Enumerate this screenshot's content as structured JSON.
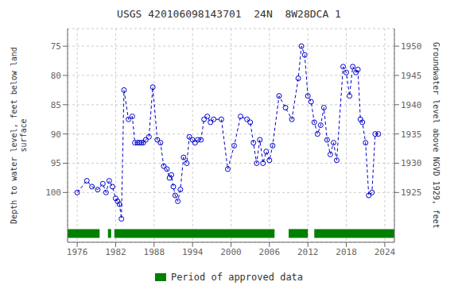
{
  "chart_data": {
    "type": "line",
    "title": "USGS 420106098143701  24N  8W28DCA 1",
    "ylabel": "Depth to water level, feet below land\nsurface",
    "y2label": "Groundwater level above NGVD 1929, feet",
    "x": [
      1976.0,
      1977.5,
      1978.3,
      1979.2,
      1980.0,
      1980.5,
      1981.0,
      1981.5,
      1982.0,
      1982.3,
      1982.6,
      1982.9,
      1983.3,
      1984.0,
      1984.6,
      1985.0,
      1985.4,
      1985.7,
      1986.0,
      1986.3,
      1986.7,
      1987.2,
      1987.8,
      1988.5,
      1989.0,
      1989.5,
      1990.0,
      1990.4,
      1990.7,
      1991.0,
      1991.3,
      1991.7,
      1992.1,
      1992.6,
      1993.1,
      1993.5,
      1994.0,
      1994.4,
      1994.8,
      1995.3,
      1995.8,
      1996.3,
      1996.8,
      1997.3,
      1998.5,
      1999.5,
      2000.5,
      2001.5,
      2002.5,
      2003.0,
      2003.5,
      2004.0,
      2004.5,
      2005.0,
      2005.5,
      2006.0,
      2006.5,
      2007.5,
      2008.5,
      2009.5,
      2010.5,
      2011.0,
      2011.5,
      2012.0,
      2012.5,
      2013.0,
      2013.5,
      2014.0,
      2014.5,
      2015.0,
      2015.5,
      2016.0,
      2016.5,
      2017.5,
      2018.0,
      2018.5,
      2019.0,
      2019.5,
      2019.8,
      2020.2,
      2020.5,
      2021.0,
      2021.5,
      2022.0,
      2022.5,
      2023.0
    ],
    "values": [
      100.0,
      98.0,
      99.0,
      99.5,
      98.5,
      100.0,
      98.0,
      99.0,
      101.0,
      101.5,
      102.0,
      104.5,
      82.5,
      87.5,
      87.0,
      91.5,
      91.5,
      91.5,
      91.5,
      91.5,
      91.0,
      90.5,
      82.0,
      91.0,
      91.5,
      95.5,
      96.0,
      97.5,
      97.0,
      99.0,
      100.5,
      101.5,
      99.5,
      94.0,
      95.0,
      90.5,
      91.0,
      91.5,
      91.0,
      91.0,
      87.5,
      87.0,
      88.0,
      87.5,
      87.5,
      96.0,
      92.0,
      87.0,
      87.5,
      88.0,
      91.5,
      95.0,
      91.0,
      95.0,
      93.0,
      94.5,
      92.0,
      83.5,
      85.5,
      87.5,
      80.5,
      75.0,
      76.5,
      83.5,
      84.5,
      88.0,
      90.0,
      88.5,
      85.5,
      91.0,
      93.5,
      91.5,
      94.5,
      78.5,
      79.5,
      83.5,
      78.5,
      79.5,
      79.0,
      87.5,
      88.0,
      91.5,
      100.5,
      100.0,
      90.0,
      90.0
    ],
    "color": "#0000cc",
    "line_style": "dashed",
    "marker": "open_circle",
    "xlim": [
      1974.5,
      2025.5
    ],
    "xticks": [
      1976,
      1982,
      1988,
      1994,
      2000,
      2006,
      2012,
      2018,
      2024
    ],
    "ylim": [
      108.5,
      72
    ],
    "yticks": [
      75,
      80,
      85,
      90,
      95,
      100
    ],
    "y2lim": [
      1916.5,
      1953
    ],
    "y2ticks": [
      1925,
      1930,
      1935,
      1940,
      1945,
      1950
    ],
    "grid": true,
    "legend": "bottom",
    "approved": {
      "name": "Period of approved data",
      "color": "#008000",
      "periods": [
        [
          1974.5,
          1979.5
        ],
        [
          1980.8,
          1981.3
        ],
        [
          1981.8,
          2006.8
        ],
        [
          2009.0,
          2012.0
        ],
        [
          2013.0,
          2025.5
        ]
      ],
      "bar_y": 107.0,
      "bar_height": 1.5
    }
  }
}
